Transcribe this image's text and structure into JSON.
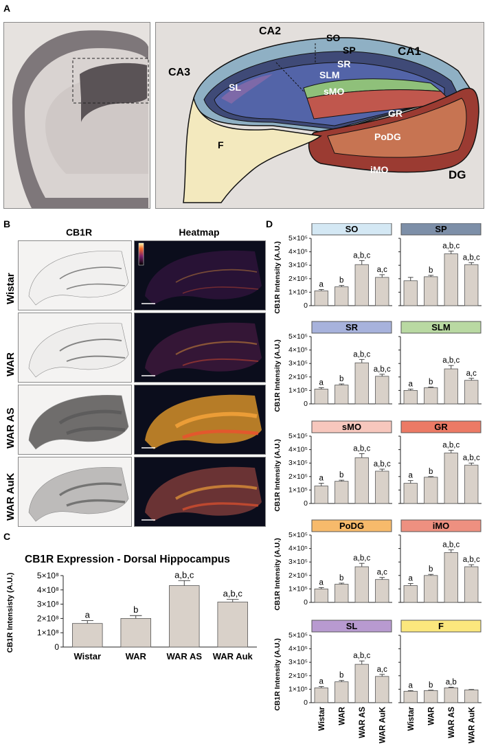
{
  "panels": {
    "a": "A",
    "b": "B",
    "c": "C",
    "d": "D"
  },
  "panelA": {
    "regions": [
      "CA2",
      "SO",
      "SP",
      "CA1",
      "CA3",
      "SR",
      "SLM",
      "SL",
      "sMO",
      "GR",
      "F",
      "PoDG",
      "iMO",
      "DG"
    ]
  },
  "panelB": {
    "col1": "CB1R",
    "col2": "Heatmap",
    "rows": [
      "Wistar",
      "WAR",
      "WAR AS",
      "WAR AuK"
    ]
  },
  "panelC": {
    "title": "CB1R Expression - Dorsal Hippocampus",
    "ylabel": "CB1R Intensisty (A.U.)",
    "yticks": [
      "0",
      "1×10⁸",
      "2×10⁸",
      "3×10⁸",
      "4×10⁸",
      "5×10⁸"
    ]
  },
  "panelD": {
    "ylabel": "CB1R Intensity (A.U.)",
    "yticks": [
      "0",
      "1×10⁵",
      "2×10⁵",
      "3×10⁵",
      "4×10⁵",
      "5×10⁵"
    ],
    "xlabels": [
      "Wistar",
      "WAR",
      "WAR AS",
      "WAR AuK"
    ]
  },
  "colors": {
    "bar": "#d9d1c9",
    "bar_edge": "#555555"
  },
  "chart_data": [
    {
      "type": "bar",
      "title": "CB1R Expression - Dorsal Hippocampus",
      "ylabel": "CB1R Intensisty (A.U.)",
      "categories": [
        "Wistar",
        "WAR",
        "WAR AS",
        "WAR Auk"
      ],
      "values": [
        165000000,
        200000000,
        430000000,
        315000000
      ],
      "errors": [
        20000000,
        20000000,
        35000000,
        18000000
      ],
      "sig": [
        "a",
        "b",
        "a,b,c",
        "a,b,c"
      ],
      "ylim": [
        0,
        500000000
      ]
    },
    {
      "type": "bar",
      "title": "SO",
      "color": "#d4e8f4",
      "categories": [
        "Wistar",
        "WAR",
        "WAR AS",
        "WAR AuK"
      ],
      "values": [
        110000,
        140000,
        305000,
        210000
      ],
      "errors": [
        10000,
        10000,
        30000,
        20000
      ],
      "sig": [
        "a",
        "b",
        "a,b,c",
        "a,c"
      ],
      "ylim": [
        0,
        500000
      ]
    },
    {
      "type": "bar",
      "title": "SP",
      "color": "#7d8fa8",
      "categories": [
        "Wistar",
        "WAR",
        "WAR AS",
        "WAR AuK"
      ],
      "values": [
        185000,
        215000,
        385000,
        305000
      ],
      "errors": [
        25000,
        10000,
        20000,
        15000
      ],
      "sig": [
        "",
        "b",
        "a,b,c",
        "a,b,c"
      ],
      "ylim": [
        0,
        500000
      ]
    },
    {
      "type": "bar",
      "title": "SR",
      "color": "#a7b2dc",
      "categories": [
        "Wistar",
        "WAR",
        "WAR AS",
        "WAR AuK"
      ],
      "values": [
        110000,
        140000,
        305000,
        205000
      ],
      "errors": [
        10000,
        8000,
        25000,
        15000
      ],
      "sig": [
        "a",
        "b",
        "a,b,c",
        "a,b,c"
      ],
      "ylim": [
        0,
        500000
      ]
    },
    {
      "type": "bar",
      "title": "SLM",
      "color": "#b9d9a2",
      "categories": [
        "Wistar",
        "WAR",
        "WAR AS",
        "WAR AuK"
      ],
      "values": [
        100000,
        120000,
        260000,
        175000
      ],
      "errors": [
        10000,
        5000,
        25000,
        15000
      ],
      "sig": [
        "a",
        "b",
        "a,b,c",
        "a,c"
      ],
      "ylim": [
        0,
        500000
      ]
    },
    {
      "type": "bar",
      "title": "sMO",
      "color": "#f7c7bd",
      "categories": [
        "Wistar",
        "WAR",
        "WAR AS",
        "WAR AuK"
      ],
      "values": [
        130000,
        165000,
        340000,
        240000
      ],
      "errors": [
        20000,
        8000,
        30000,
        15000
      ],
      "sig": [
        "a",
        "b",
        "a,b,c",
        "a,b,c"
      ],
      "ylim": [
        0,
        500000
      ]
    },
    {
      "type": "bar",
      "title": "GR",
      "color": "#ec7a65",
      "categories": [
        "Wistar",
        "WAR",
        "WAR AS",
        "WAR AuK"
      ],
      "values": [
        150000,
        195000,
        375000,
        285000
      ],
      "errors": [
        20000,
        5000,
        20000,
        15000
      ],
      "sig": [
        "a",
        "b",
        "a,b,c",
        "a,b,c"
      ],
      "ylim": [
        0,
        500000
      ]
    },
    {
      "type": "bar",
      "title": "PoDG",
      "color": "#f7ba6b",
      "categories": [
        "Wistar",
        "WAR",
        "WAR AS",
        "WAR AuK"
      ],
      "values": [
        100000,
        135000,
        265000,
        170000
      ],
      "errors": [
        10000,
        8000,
        25000,
        15000
      ],
      "sig": [
        "a",
        "b",
        "a,b,c",
        "a,c"
      ],
      "ylim": [
        0,
        500000
      ]
    },
    {
      "type": "bar",
      "title": "iMO",
      "color": "#ee9080",
      "categories": [
        "Wistar",
        "WAR",
        "WAR AS",
        "WAR AuK"
      ],
      "values": [
        125000,
        200000,
        370000,
        265000
      ],
      "errors": [
        15000,
        8000,
        20000,
        15000
      ],
      "sig": [
        "a",
        "b",
        "a,b,c",
        "a,b,c"
      ],
      "ylim": [
        0,
        500000
      ]
    },
    {
      "type": "bar",
      "title": "SL",
      "color": "#b89ad0",
      "categories": [
        "Wistar",
        "WAR",
        "WAR AS",
        "WAR AuK"
      ],
      "values": [
        110000,
        155000,
        285000,
        195000
      ],
      "errors": [
        10000,
        10000,
        25000,
        15000
      ],
      "sig": [
        "a",
        "b",
        "a,b,c",
        "a,c"
      ],
      "ylim": [
        0,
        500000
      ]
    },
    {
      "type": "bar",
      "title": "F",
      "color": "#fbe77d",
      "categories": [
        "Wistar",
        "WAR",
        "WAR AS",
        "WAR AuK"
      ],
      "values": [
        85000,
        90000,
        110000,
        95000
      ],
      "errors": [
        5000,
        3000,
        5000,
        3000
      ],
      "sig": [
        "a",
        "b",
        "a,b",
        ""
      ],
      "ylim": [
        0,
        500000
      ]
    }
  ]
}
